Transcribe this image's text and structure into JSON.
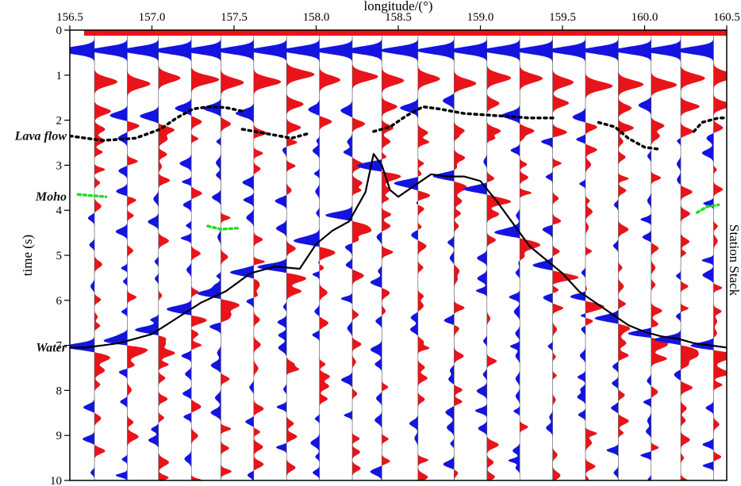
{
  "chart_data": {
    "type": "line",
    "title": "",
    "xlabel": "longitude/(°)",
    "ylabel": "time (s)",
    "right_label": "Station Stack",
    "xlim": [
      156.5,
      160.5
    ],
    "ylim": [
      0,
      10
    ],
    "x_ticks": [
      156.5,
      157.0,
      157.5,
      158.0,
      158.5,
      159.0,
      159.5,
      160.0,
      160.5
    ],
    "x_tick_labels": [
      "156.5",
      "157.0",
      "157.5",
      "158.0",
      "158.5",
      "159.0",
      "159.5",
      "160.0",
      "160.5"
    ],
    "y_ticks": [
      0,
      1,
      2,
      3,
      4,
      5,
      6,
      7,
      8,
      9,
      10
    ],
    "y_tick_labels": [
      "0",
      "1",
      "2",
      "3",
      "4",
      "5",
      "6",
      "7",
      "8",
      "9",
      "10"
    ],
    "y_inverted": true,
    "grid": false,
    "positive_color": "#e8141a",
    "negative_color": "#1414e0",
    "trace_longitudes": [
      156.65,
      156.85,
      157.04,
      157.24,
      157.42,
      157.62,
      157.82,
      158.02,
      158.22,
      158.4,
      158.62,
      158.84,
      159.04,
      159.24,
      159.44,
      159.64,
      159.84,
      160.04,
      160.22,
      160.42
    ],
    "water_arrival": {
      "name": "Water",
      "x": [
        156.5,
        156.6,
        156.8,
        157.0,
        157.15,
        157.3,
        157.45,
        157.6,
        157.75,
        157.9,
        158.0,
        158.1,
        158.2,
        158.3,
        158.35,
        158.4,
        158.45,
        158.5,
        158.6,
        158.7,
        158.8,
        158.9,
        159.0,
        159.1,
        159.2,
        159.3,
        159.4,
        159.5,
        159.6,
        159.7,
        159.8,
        159.9,
        160.0,
        160.1,
        160.2,
        160.3,
        160.4,
        160.5
      ],
      "t": [
        7.05,
        7.05,
        6.95,
        6.75,
        6.4,
        6.05,
        5.8,
        5.4,
        5.25,
        5.3,
        4.75,
        4.45,
        4.25,
        3.6,
        2.75,
        3.0,
        3.55,
        3.7,
        3.45,
        3.2,
        3.25,
        3.25,
        3.35,
        3.8,
        4.3,
        4.8,
        5.1,
        5.4,
        5.8,
        6.05,
        6.3,
        6.55,
        6.7,
        6.8,
        6.85,
        6.95,
        7.0,
        7.05
      ]
    },
    "lava_flow_segments": [
      {
        "x": [
          156.5,
          156.7,
          156.9,
          157.05,
          157.15,
          157.25,
          157.35,
          157.45,
          157.55
        ],
        "t": [
          2.35,
          2.45,
          2.4,
          2.2,
          1.95,
          1.75,
          1.7,
          1.72,
          1.8
        ]
      },
      {
        "x": [
          157.55,
          157.7,
          157.85,
          157.95
        ],
        "t": [
          2.2,
          2.3,
          2.4,
          2.3
        ]
      },
      {
        "x": [
          158.35,
          158.45,
          158.55,
          158.65,
          158.75,
          158.9,
          159.1,
          159.3,
          159.45
        ],
        "t": [
          2.25,
          2.15,
          1.9,
          1.7,
          1.75,
          1.85,
          1.9,
          1.95,
          1.95
        ]
      },
      {
        "x": [
          159.72,
          159.82,
          159.9,
          160.0,
          160.1
        ],
        "t": [
          2.05,
          2.15,
          2.4,
          2.6,
          2.65
        ]
      },
      {
        "x": [
          160.3,
          160.35,
          160.45,
          160.5
        ],
        "t": [
          2.25,
          2.05,
          1.95,
          1.95
        ]
      }
    ],
    "moho_segments": [
      {
        "x": [
          156.55,
          156.62,
          156.72
        ],
        "t": [
          3.65,
          3.67,
          3.7
        ]
      },
      {
        "x": [
          157.34,
          157.42,
          157.52
        ],
        "t": [
          4.35,
          4.42,
          4.4
        ]
      },
      {
        "x": [
          160.32,
          160.38,
          160.45
        ],
        "t": [
          4.05,
          3.92,
          3.88
        ]
      }
    ],
    "annotations": [
      {
        "label": "Lava flow",
        "t": 2.35
      },
      {
        "label": "Moho",
        "t": 3.7
      },
      {
        "label": "Water",
        "t": 7.05
      }
    ]
  }
}
